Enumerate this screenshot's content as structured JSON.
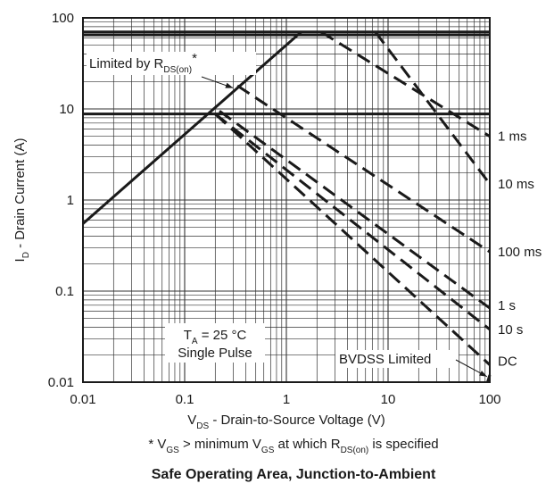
{
  "chart_data": {
    "type": "line",
    "title": "Safe Operating Area, Junction-to-Ambient",
    "xlabel": {
      "main": "V",
      "sub": "DS",
      "rest": " - Drain-to-Source Voltage (V)"
    },
    "ylabel": {
      "main": "I",
      "sub": "D",
      "rest": " - Drain Current (A)"
    },
    "footnote": {
      "pre": "* V",
      "sub1": "GS",
      "mid1": " > minimum V",
      "sub2": "GS",
      "mid2": " at which R",
      "sub3": "DS(on)",
      "post": " is specified"
    },
    "x_scale": "log",
    "y_scale": "log",
    "xlim": [
      0.01,
      100
    ],
    "ylim": [
      0.01,
      100
    ],
    "grid": true,
    "x_ticks": [
      {
        "value": 0.01,
        "label": "0.01"
      },
      {
        "value": 0.1,
        "label": "0.1"
      },
      {
        "value": 1,
        "label": "1"
      },
      {
        "value": 10,
        "label": "10"
      },
      {
        "value": 100,
        "label": "100"
      }
    ],
    "y_ticks": [
      {
        "value": 0.01,
        "label": "0.01"
      },
      {
        "value": 0.1,
        "label": "0.1"
      },
      {
        "value": 1,
        "label": "1"
      },
      {
        "value": 10,
        "label": "10"
      },
      {
        "value": 100,
        "label": "100"
      }
    ],
    "hlines": [
      70,
      65,
      8.8
    ],
    "rdson_limit": {
      "points": [
        [
          0.01,
          0.55
        ],
        [
          1.4,
          70
        ]
      ]
    },
    "pulse_curves": [
      {
        "label": "1 ms",
        "label_y": 5,
        "points": [
          [
            2.2,
            70
          ],
          [
            100,
            5
          ]
        ]
      },
      {
        "label": "10 ms",
        "label_y": 1.5,
        "points": [
          [
            7.5,
            70
          ],
          [
            100,
            1.5
          ]
        ]
      },
      {
        "label": "100 ms",
        "label_y": 0.27,
        "points": [
          [
            0.33,
            18
          ],
          [
            100,
            0.27
          ]
        ]
      },
      {
        "label": "1 s",
        "label_y": 0.07,
        "points": [
          [
            0.22,
            9.5
          ],
          [
            100,
            0.065
          ]
        ]
      },
      {
        "label": "10 s",
        "label_y": 0.038,
        "points": [
          [
            0.2,
            8.8
          ],
          [
            100,
            0.038
          ]
        ]
      },
      {
        "label": "DC",
        "label_y": 0.017,
        "points": [
          [
            0.2,
            8.8
          ],
          [
            100,
            0.0155
          ]
        ]
      }
    ],
    "bvdss_line": {
      "points": [
        [
          95,
          0.01
        ],
        [
          100,
          0.012
        ]
      ]
    },
    "annotations": {
      "limited": {
        "pre": "Limited by R",
        "sub": "DS(on)",
        "post": "*",
        "arrow_to": [
          0.3,
          17
        ]
      },
      "conditions": {
        "line1_main": "T",
        "line1_sub": "A",
        "line1_rest": " = 25 °C",
        "line2": "Single Pulse"
      },
      "bvdss": {
        "text": "BVDSS Limited",
        "arrow_to": [
          94,
          0.0115
        ]
      }
    }
  }
}
